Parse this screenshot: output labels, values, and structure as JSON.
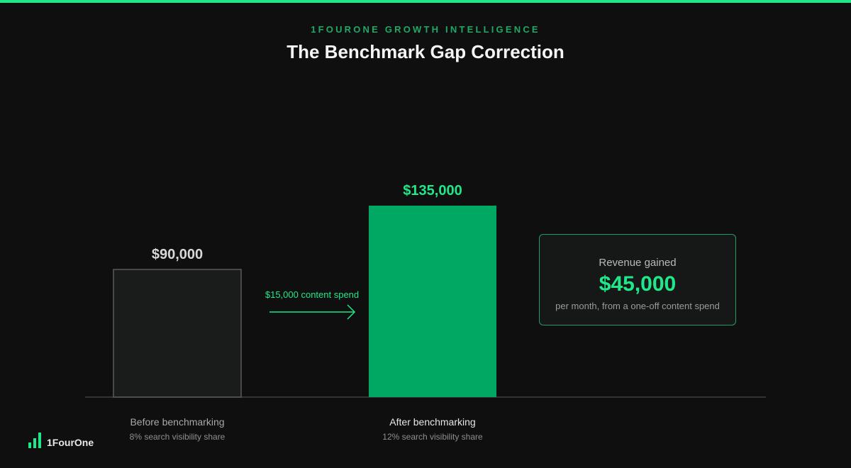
{
  "header": {
    "eyebrow": "1FOURONE GROWTH INTELLIGENCE",
    "title": "The Benchmark Gap Correction"
  },
  "chart_data": {
    "type": "bar",
    "title": "The Benchmark Gap Correction",
    "categories": [
      "Before benchmarking",
      "After benchmarking"
    ],
    "values": [
      90000,
      135000
    ],
    "value_labels": [
      "$90,000",
      "$135,000"
    ],
    "subtitles": [
      "8% search visibility share",
      "12% search visibility share"
    ],
    "ylim": [
      0,
      150000
    ],
    "grid": false,
    "annotation": "$15,000 content spend",
    "colors": {
      "before_fill": "#1a1c1b",
      "before_stroke": "#5a5a5a",
      "after_fill": "#00a864",
      "accent": "#1ee88a",
      "before_value": "#d8d8d8",
      "axis": "#333333"
    }
  },
  "callout": {
    "label": "Revenue gained",
    "value": "$45,000",
    "subtitle": "per month, from a one-off content spend"
  },
  "brand": {
    "name": "1FourOne",
    "icon": "bar-chart-icon"
  }
}
